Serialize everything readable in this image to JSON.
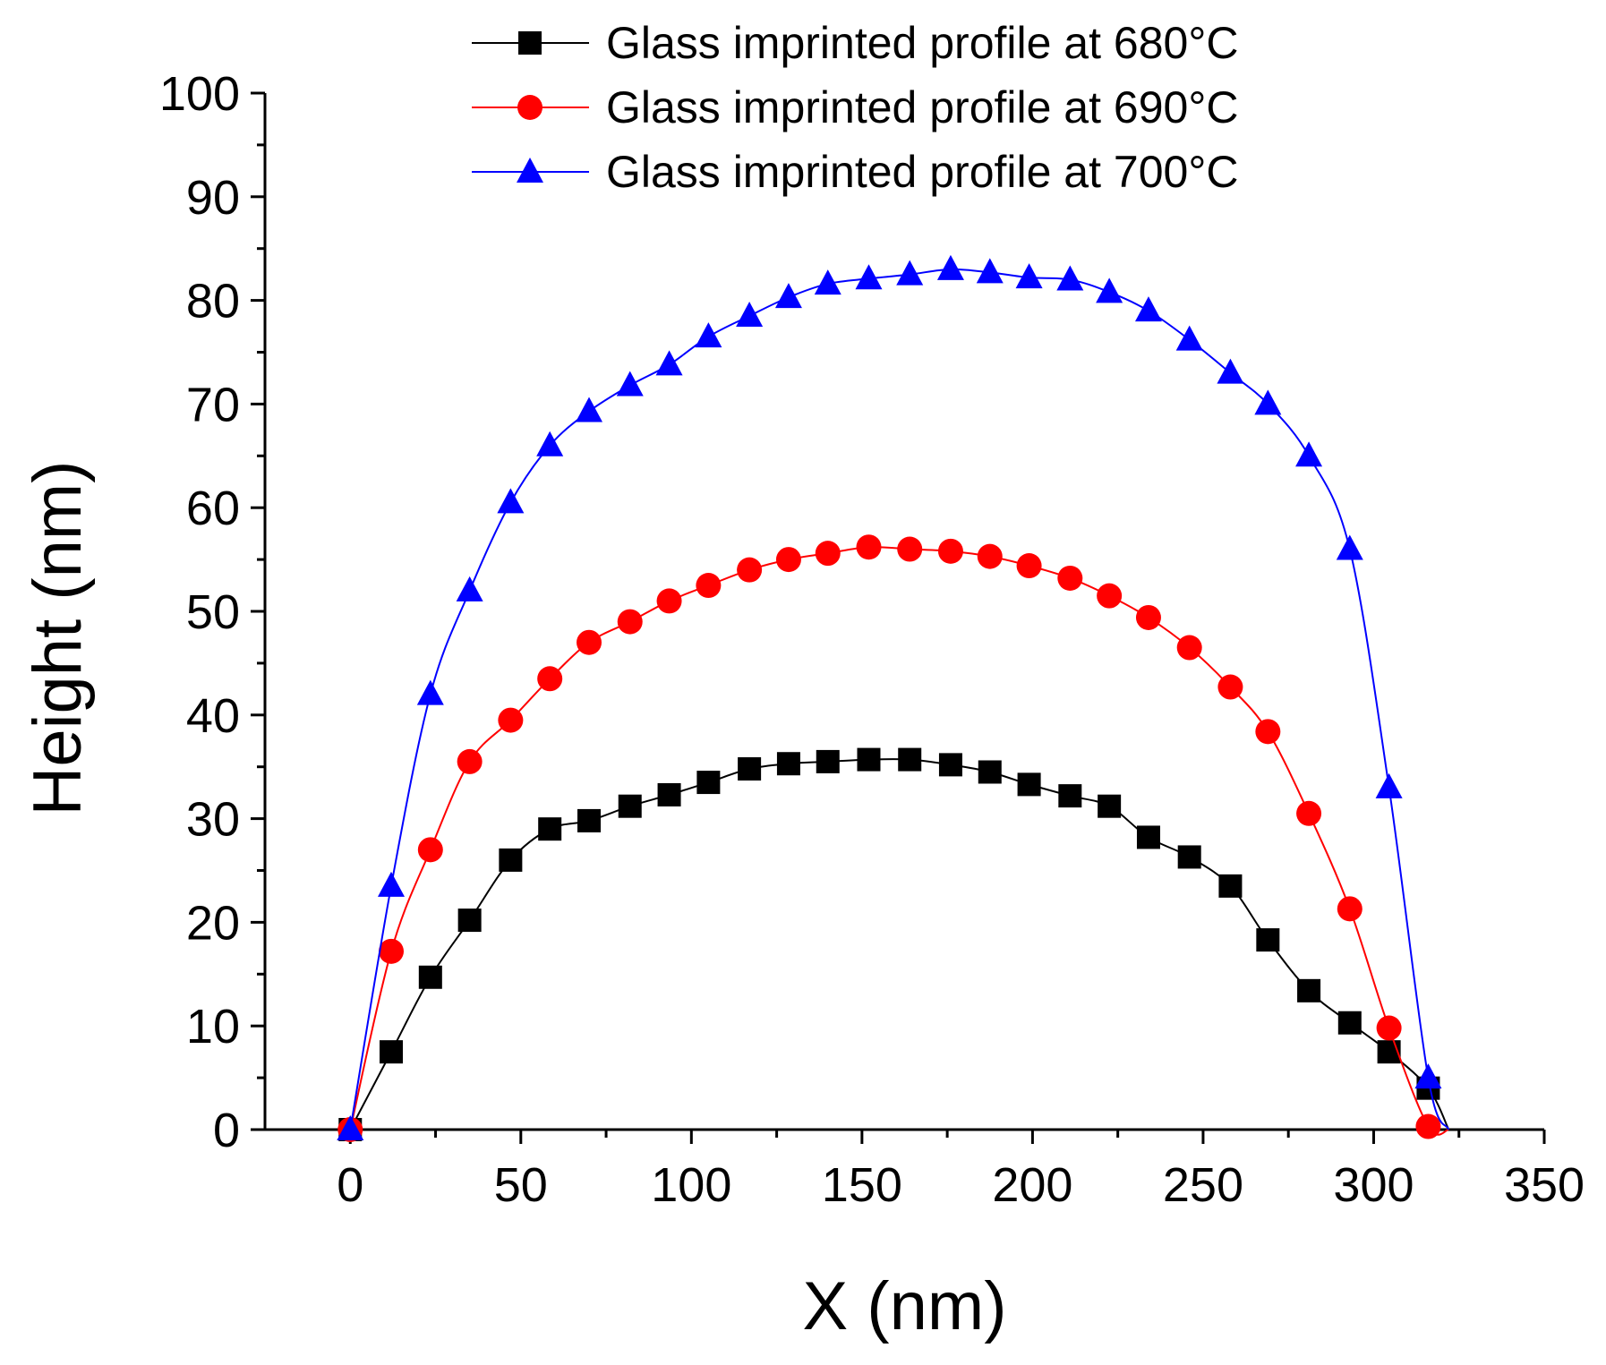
{
  "chart_data": {
    "type": "line",
    "title": "",
    "xlabel": "X (nm)",
    "ylabel": "Height (nm)",
    "xlim": [
      -25,
      350
    ],
    "ylim": [
      0,
      100
    ],
    "xticks": [
      0,
      50,
      100,
      150,
      200,
      250,
      300,
      350
    ],
    "yticks": [
      0,
      10,
      20,
      30,
      40,
      50,
      60,
      70,
      80,
      90,
      100
    ],
    "grid": false,
    "legend_position": "top-right",
    "series": [
      {
        "name": "Glass imprinted profile at 680°C",
        "color": "#000000",
        "marker": "square",
        "x": [
          0,
          12,
          23.5,
          35,
          47,
          58.5,
          70,
          82,
          93.5,
          105,
          117,
          128.5,
          140,
          152,
          164,
          176,
          187.5,
          199,
          211,
          222.5,
          234,
          246,
          258,
          269,
          281,
          293,
          304.5,
          316
        ],
        "y": [
          0,
          7.5,
          14.7,
          20.2,
          26,
          29,
          29.8,
          31.2,
          32.3,
          33.5,
          34.8,
          35.3,
          35.5,
          35.7,
          35.7,
          35.2,
          34.5,
          33.3,
          32.2,
          31.2,
          28.2,
          26.3,
          23.5,
          18.3,
          13.4,
          10.3,
          7.5,
          4
        ]
      },
      {
        "name": "Glass imprinted profile at 690°C",
        "color": "#ff0000",
        "marker": "circle",
        "x": [
          0,
          12,
          23.5,
          35,
          47,
          58.5,
          70,
          82,
          93.5,
          105,
          117,
          128.5,
          140,
          152,
          164,
          176,
          187.5,
          199,
          211,
          222.5,
          234,
          246,
          258,
          269,
          281,
          293,
          304.5,
          316
        ],
        "y": [
          0,
          17.2,
          27,
          35.5,
          39.5,
          43.5,
          47,
          49,
          51,
          52.5,
          54,
          55,
          55.6,
          56.2,
          56,
          55.8,
          55.3,
          54.4,
          53.2,
          51.5,
          49.4,
          46.5,
          42.7,
          38.4,
          30.5,
          21.3,
          9.8,
          0.3
        ]
      },
      {
        "name": "Glass imprinted profile at 700°C",
        "color": "#0000ff",
        "marker": "triangle",
        "x": [
          0,
          12,
          23.5,
          35,
          47,
          58.5,
          70,
          82,
          93.5,
          105,
          117,
          128.5,
          140,
          152,
          164,
          176,
          187.5,
          199,
          211,
          222.5,
          234,
          246,
          258,
          269,
          281,
          293,
          304.5,
          316
        ],
        "y": [
          0,
          23.5,
          42,
          52,
          60.5,
          66,
          69.3,
          71.8,
          73.8,
          76.5,
          78.5,
          80.3,
          81.6,
          82.1,
          82.5,
          83,
          82.7,
          82.2,
          82,
          80.8,
          79,
          76.2,
          73,
          70,
          65,
          56,
          33,
          5
        ]
      }
    ]
  }
}
